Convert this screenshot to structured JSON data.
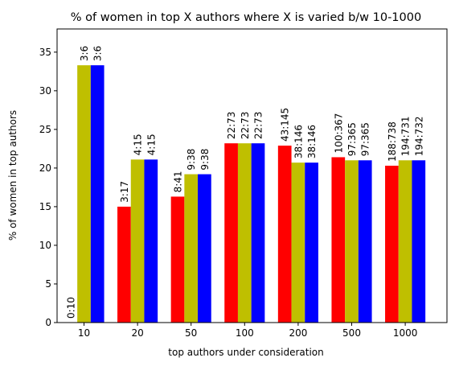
{
  "chart_data": {
    "type": "bar",
    "title": "% of women in top X authors where X is varied b/w 10-1000",
    "xlabel": "top authors under consideration",
    "ylabel": "% of women in top authors",
    "ylim": [
      0,
      38
    ],
    "yticks": [
      0,
      5,
      10,
      15,
      20,
      25,
      30,
      35
    ],
    "categories": [
      "10",
      "20",
      "50",
      "100",
      "200",
      "500",
      "1000"
    ],
    "grid": false,
    "series": [
      {
        "color": "#ff0000",
        "values": [
          0,
          15.0,
          16.3,
          23.2,
          22.9,
          21.4,
          20.3
        ],
        "labels": [
          "0:10",
          "3:17",
          "8:41",
          "22:73",
          "43:145",
          "100:367",
          "188:738"
        ]
      },
      {
        "color": "#bfbf00",
        "values": [
          33.3,
          21.1,
          19.2,
          23.2,
          20.7,
          21.0,
          21.0
        ],
        "labels": [
          "3:6",
          "4:15",
          "9:38",
          "22:73",
          "38:146",
          "97:365",
          "194:731"
        ]
      },
      {
        "color": "#0000ff",
        "values": [
          33.3,
          21.1,
          19.2,
          23.2,
          20.7,
          21.0,
          21.0
        ],
        "labels": [
          "3:6",
          "4:15",
          "9:38",
          "22:73",
          "38:146",
          "97:365",
          "194:732"
        ]
      }
    ]
  }
}
